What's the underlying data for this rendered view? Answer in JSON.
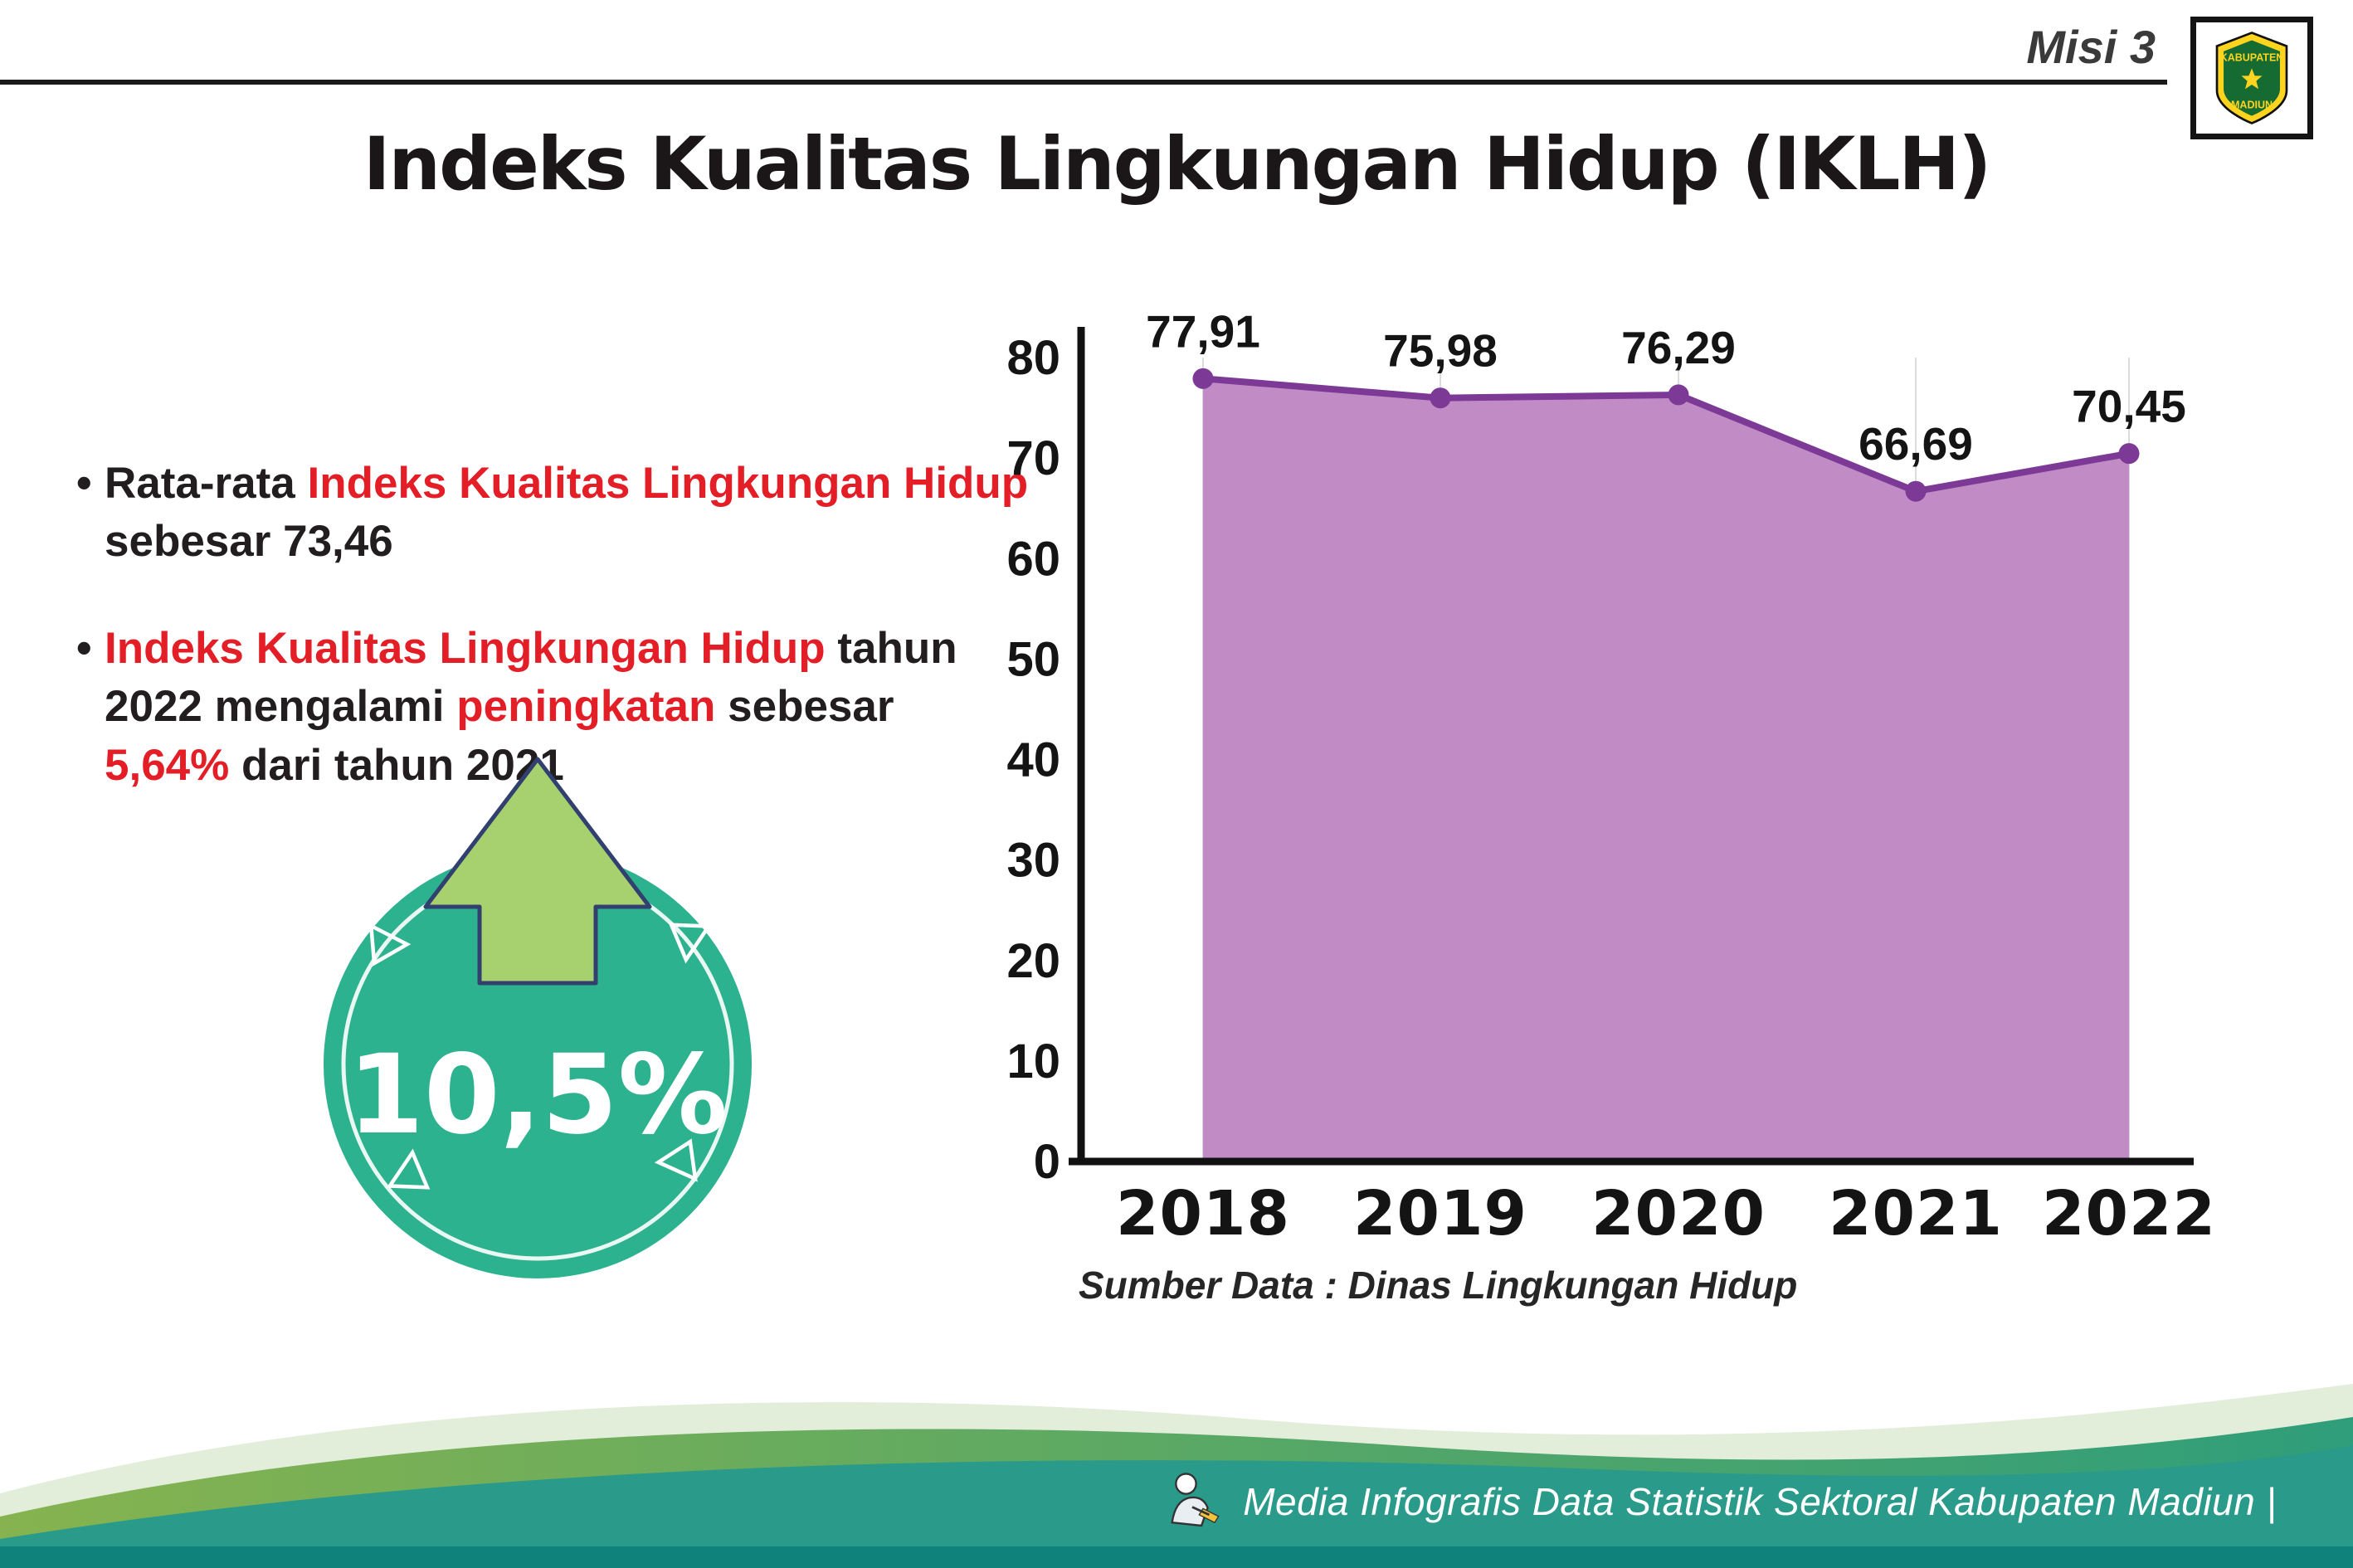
{
  "header": {
    "misi_label": "Misi 3",
    "logo": {
      "line1": "KABUPATEN",
      "line2": "MADIUN"
    }
  },
  "title": "Indeks Kualitas Lingkungan Hidup (IKLH)",
  "bullets": {
    "marker": "•",
    "one": {
      "black1": "Rata-rata ",
      "red1": "Indeks Kualitas Lingkungan Hidup",
      "black2": " sebesar 73,46"
    },
    "two": {
      "red1": "Indeks Kualitas Lingkungan Hidup",
      "black1": " tahun 2022 mengalami ",
      "red2": "peningkatan",
      "black2": " sebesar ",
      "red3": "5,64%",
      "black3": " dari tahun 2021"
    }
  },
  "badge": {
    "value": "10,5%"
  },
  "source_note": "Sumber Data : Dinas Lingkungan Hidup",
  "footer": {
    "credit": "Media Infografis Data Statistik Sektoral Kabupaten Madiun |"
  },
  "colors": {
    "accent_red": "#e31e26",
    "badge_teal": "#2db290",
    "arrow_green": "#a7d06e",
    "chart_line": "#7c3996",
    "chart_fill": "#c18cc6",
    "footer_teal": "#2a9a8a"
  },
  "chart_data": {
    "type": "area",
    "title": "Indeks Kualitas Lingkungan Hidup (IKLH)",
    "categories": [
      "2018",
      "2019",
      "2020",
      "2021",
      "2022"
    ],
    "values": [
      77.91,
      75.98,
      76.29,
      66.69,
      70.45
    ],
    "point_labels": [
      "77,91",
      "75,98",
      "76,29",
      "66,69",
      "70,45"
    ],
    "xlabel": "",
    "ylabel": "",
    "ylim": [
      0,
      80
    ],
    "yticks": [
      0,
      10,
      20,
      30,
      40,
      50,
      60,
      70,
      80
    ],
    "grid": "vertical-light",
    "legend": "none",
    "source": "Sumber Data : Dinas Lingkungan Hidup"
  }
}
